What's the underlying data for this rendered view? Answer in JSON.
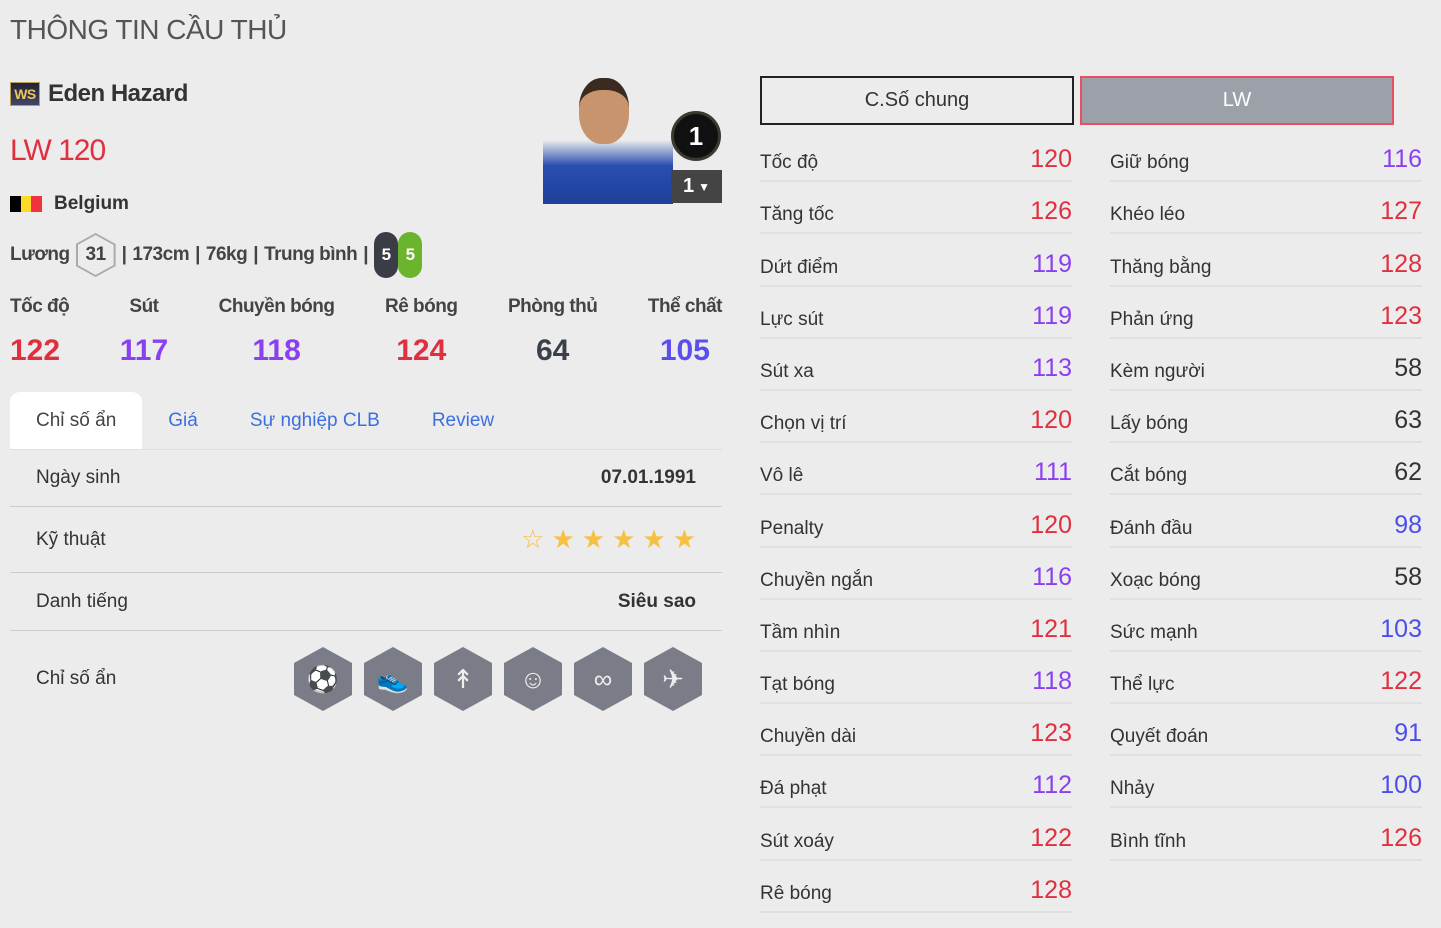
{
  "title": "THÔNG TIN CẦU THỦ",
  "player": {
    "season_badge": "WS",
    "name": "Eden Hazard",
    "position": "LW",
    "rating": "120",
    "nation": "Belgium",
    "flag_colors": [
      "#000000",
      "#fdda24",
      "#ef3340"
    ],
    "salary_label": "Lương",
    "salary": "31",
    "height": "173cm",
    "weight": "76kg",
    "body": "Trung bình",
    "left_foot": "5",
    "right_foot": "5",
    "upgrade_badge": "1",
    "level": "1"
  },
  "summary": [
    {
      "label": "Tốc độ",
      "value": "122",
      "color": "#e0303f"
    },
    {
      "label": "Sút",
      "value": "117",
      "color": "#8a3ff0"
    },
    {
      "label": "Chuyền bóng",
      "value": "118",
      "color": "#8a3ff0"
    },
    {
      "label": "Rê bóng",
      "value": "124",
      "color": "#e0303f"
    },
    {
      "label": "Phòng thủ",
      "value": "64",
      "color": "#3a3f4a"
    },
    {
      "label": "Thể chất",
      "value": "105",
      "color": "#5a4ef0"
    }
  ],
  "tabs": [
    "Chỉ số ẩn",
    "Giá",
    "Sự nghiệp CLB",
    "Review"
  ],
  "details": {
    "birth_label": "Ngày sinh",
    "birth": "07.01.1991",
    "skill_label": "Kỹ thuật",
    "skill_stars": 5,
    "skill_max": 6,
    "fame_label": "Danh tiếng",
    "fame": "Siêu sao",
    "traits_label": "Chỉ số ẩn",
    "traits": [
      "long-shot-icon",
      "speed-dribbler-icon",
      "power-header-icon",
      "flair-icon",
      "playmaker-icon",
      "finesse-shot-icon"
    ]
  },
  "stat_tabs": [
    "C.Số chung",
    "LW"
  ],
  "colors": {
    "red": "#e0303f",
    "purple": "#8a3ff0",
    "blue": "#4b4ee8",
    "dark": "#333333"
  },
  "stats_left": [
    [
      "Tốc độ",
      "120"
    ],
    [
      "Tăng tốc",
      "126"
    ],
    [
      "Dứt điểm",
      "119"
    ],
    [
      "Lực sút",
      "119"
    ],
    [
      "Sút xa",
      "113"
    ],
    [
      "Chọn vị trí",
      "120"
    ],
    [
      "Vô lê",
      "111"
    ],
    [
      "Penalty",
      "120"
    ],
    [
      "Chuyền ngắn",
      "116"
    ],
    [
      "Tầm nhìn",
      "121"
    ],
    [
      "Tạt bóng",
      "118"
    ],
    [
      "Chuyền dài",
      "123"
    ],
    [
      "Đá phạt",
      "112"
    ],
    [
      "Sút xoáy",
      "122"
    ],
    [
      "Rê bóng",
      "128"
    ]
  ],
  "stats_right": [
    [
      "Giữ bóng",
      "116"
    ],
    [
      "Khéo léo",
      "127"
    ],
    [
      "Thăng bằng",
      "128"
    ],
    [
      "Phản ứng",
      "123"
    ],
    [
      "Kèm người",
      "58"
    ],
    [
      "Lấy bóng",
      "63"
    ],
    [
      "Cắt bóng",
      "62"
    ],
    [
      "Đánh đầu",
      "98"
    ],
    [
      "Xoạc bóng",
      "58"
    ],
    [
      "Sức mạnh",
      "103"
    ],
    [
      "Thể lực",
      "122"
    ],
    [
      "Quyết đoán",
      "91"
    ],
    [
      "Nhảy",
      "100"
    ],
    [
      "Bình tĩnh",
      "126"
    ]
  ]
}
